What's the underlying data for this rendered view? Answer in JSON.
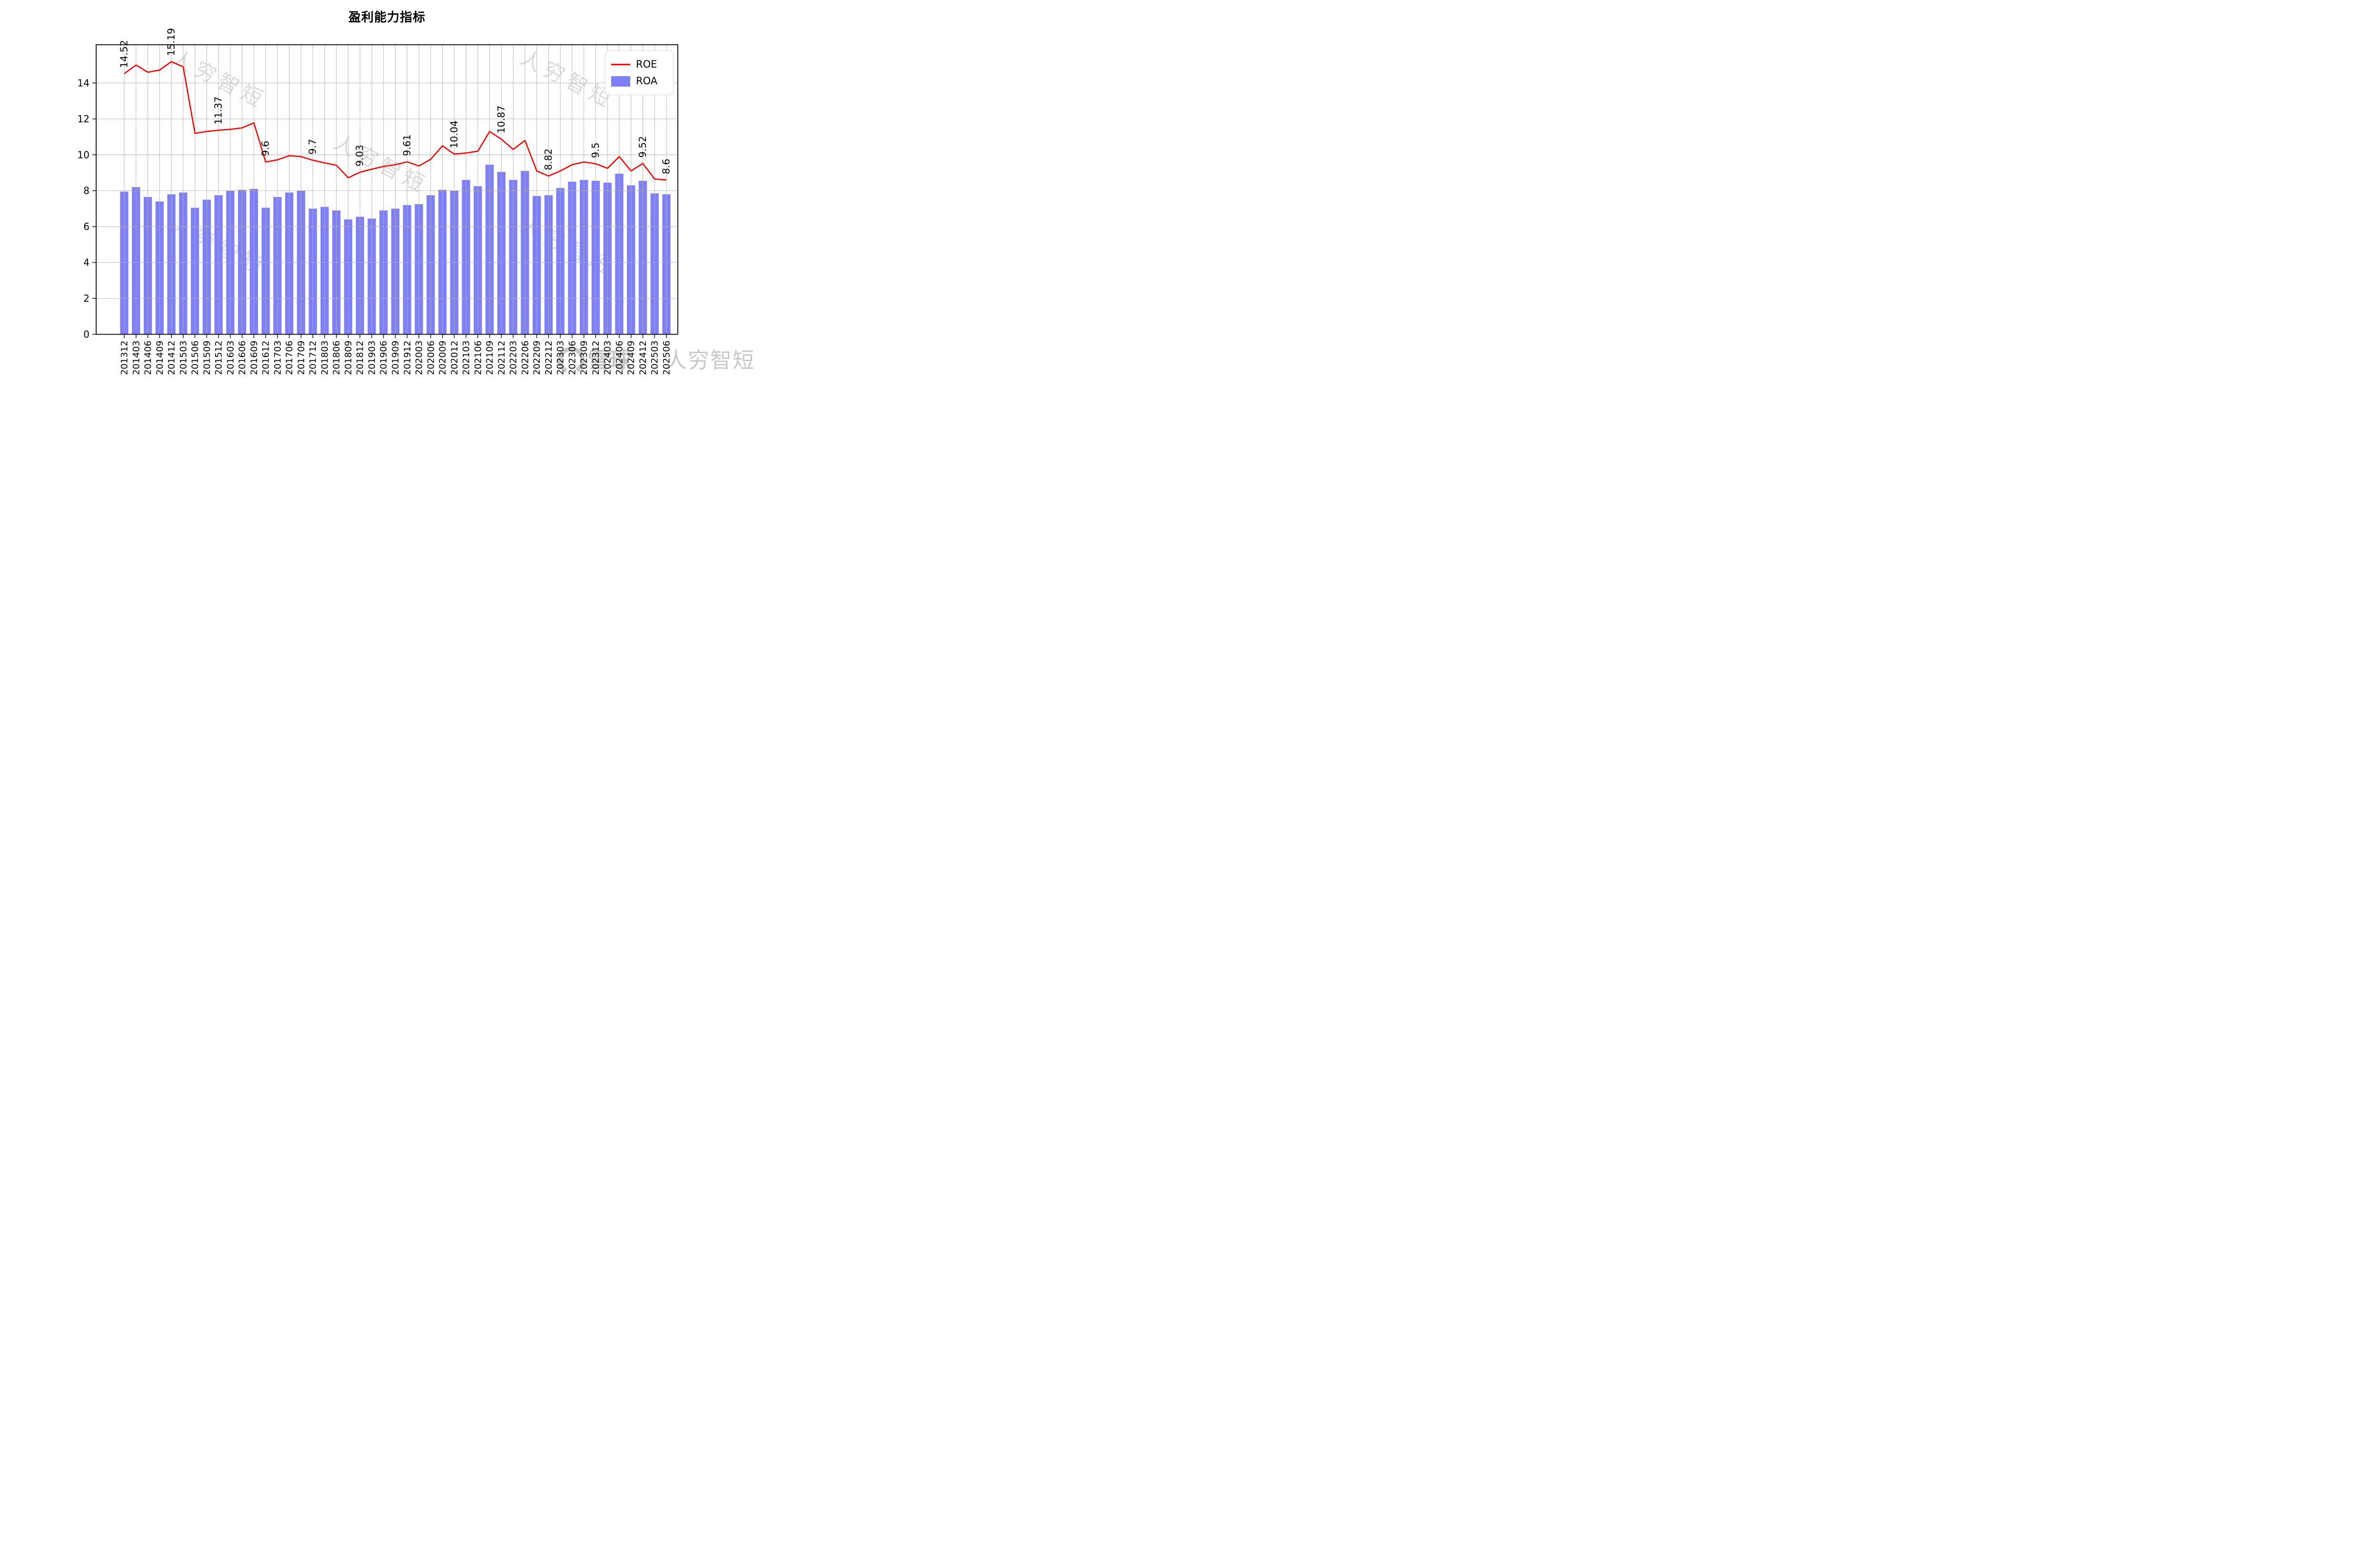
{
  "title": "盈利能力指标",
  "legend": {
    "roe": "ROE",
    "roa": "ROA"
  },
  "watermark": {
    "diagonal_text": "人穷智短",
    "brand_text": "雪球",
    "brand_suffix": "人穷智短"
  },
  "y_axis": {
    "ticks": [
      0,
      2,
      4,
      6,
      8,
      10,
      12,
      14
    ]
  },
  "chart_data": {
    "type": "bar",
    "title": "盈利能力指标",
    "xlabel": "",
    "ylabel": "",
    "ylim": [
      0,
      16.13
    ],
    "grid": true,
    "legend_position": "upper right",
    "categories": [
      "201312",
      "201403",
      "201406",
      "201409",
      "201412",
      "201503",
      "201506",
      "201509",
      "201512",
      "201603",
      "201606",
      "201609",
      "201612",
      "201703",
      "201706",
      "201709",
      "201712",
      "201803",
      "201806",
      "201809",
      "201812",
      "201903",
      "201906",
      "201909",
      "201912",
      "202003",
      "202006",
      "202009",
      "202012",
      "202103",
      "202106",
      "202109",
      "202112",
      "202203",
      "202206",
      "202209",
      "202212",
      "202303",
      "202306",
      "202309",
      "202312",
      "202403",
      "202406",
      "202409",
      "202412",
      "202503",
      "202506"
    ],
    "series": [
      {
        "name": "ROE",
        "type": "line",
        "color": "#ff0000",
        "values": [
          14.52,
          15.0,
          14.6,
          14.72,
          15.19,
          14.9,
          11.2,
          11.3,
          11.37,
          11.42,
          11.5,
          11.78,
          9.6,
          9.72,
          9.95,
          9.9,
          9.7,
          9.55,
          9.42,
          8.72,
          9.03,
          9.2,
          9.35,
          9.45,
          9.61,
          9.38,
          9.75,
          10.5,
          10.04,
          10.1,
          10.2,
          11.3,
          10.87,
          10.3,
          10.8,
          9.1,
          8.82,
          9.1,
          9.45,
          9.6,
          9.5,
          9.25,
          9.9,
          9.1,
          9.52,
          8.65,
          8.6
        ]
      },
      {
        "name": "ROA",
        "type": "bar",
        "color": "#7f80f5",
        "values": [
          7.95,
          8.2,
          7.65,
          7.4,
          7.8,
          7.9,
          7.05,
          7.5,
          7.75,
          8.0,
          8.05,
          8.1,
          7.05,
          7.65,
          7.9,
          8.0,
          7.0,
          7.1,
          6.9,
          6.4,
          6.55,
          6.45,
          6.9,
          7.0,
          7.2,
          7.25,
          7.75,
          8.05,
          8.0,
          8.6,
          8.25,
          9.45,
          9.05,
          8.6,
          9.1,
          7.7,
          7.75,
          8.15,
          8.5,
          8.6,
          8.55,
          8.45,
          8.95,
          8.3,
          8.55,
          7.85,
          7.8
        ]
      }
    ],
    "annotations": [
      {
        "i": 0,
        "text": "14.52"
      },
      {
        "i": 4,
        "text": "15.19"
      },
      {
        "i": 8,
        "text": "11.37"
      },
      {
        "i": 12,
        "text": "9.6"
      },
      {
        "i": 16,
        "text": "9.7"
      },
      {
        "i": 20,
        "text": "9.03"
      },
      {
        "i": 24,
        "text": "9.61"
      },
      {
        "i": 28,
        "text": "10.04"
      },
      {
        "i": 32,
        "text": "10.87"
      },
      {
        "i": 36,
        "text": "8.82"
      },
      {
        "i": 40,
        "text": "9.5"
      },
      {
        "i": 44,
        "text": "9.52"
      },
      {
        "i": 46,
        "text": "8.6"
      }
    ]
  }
}
